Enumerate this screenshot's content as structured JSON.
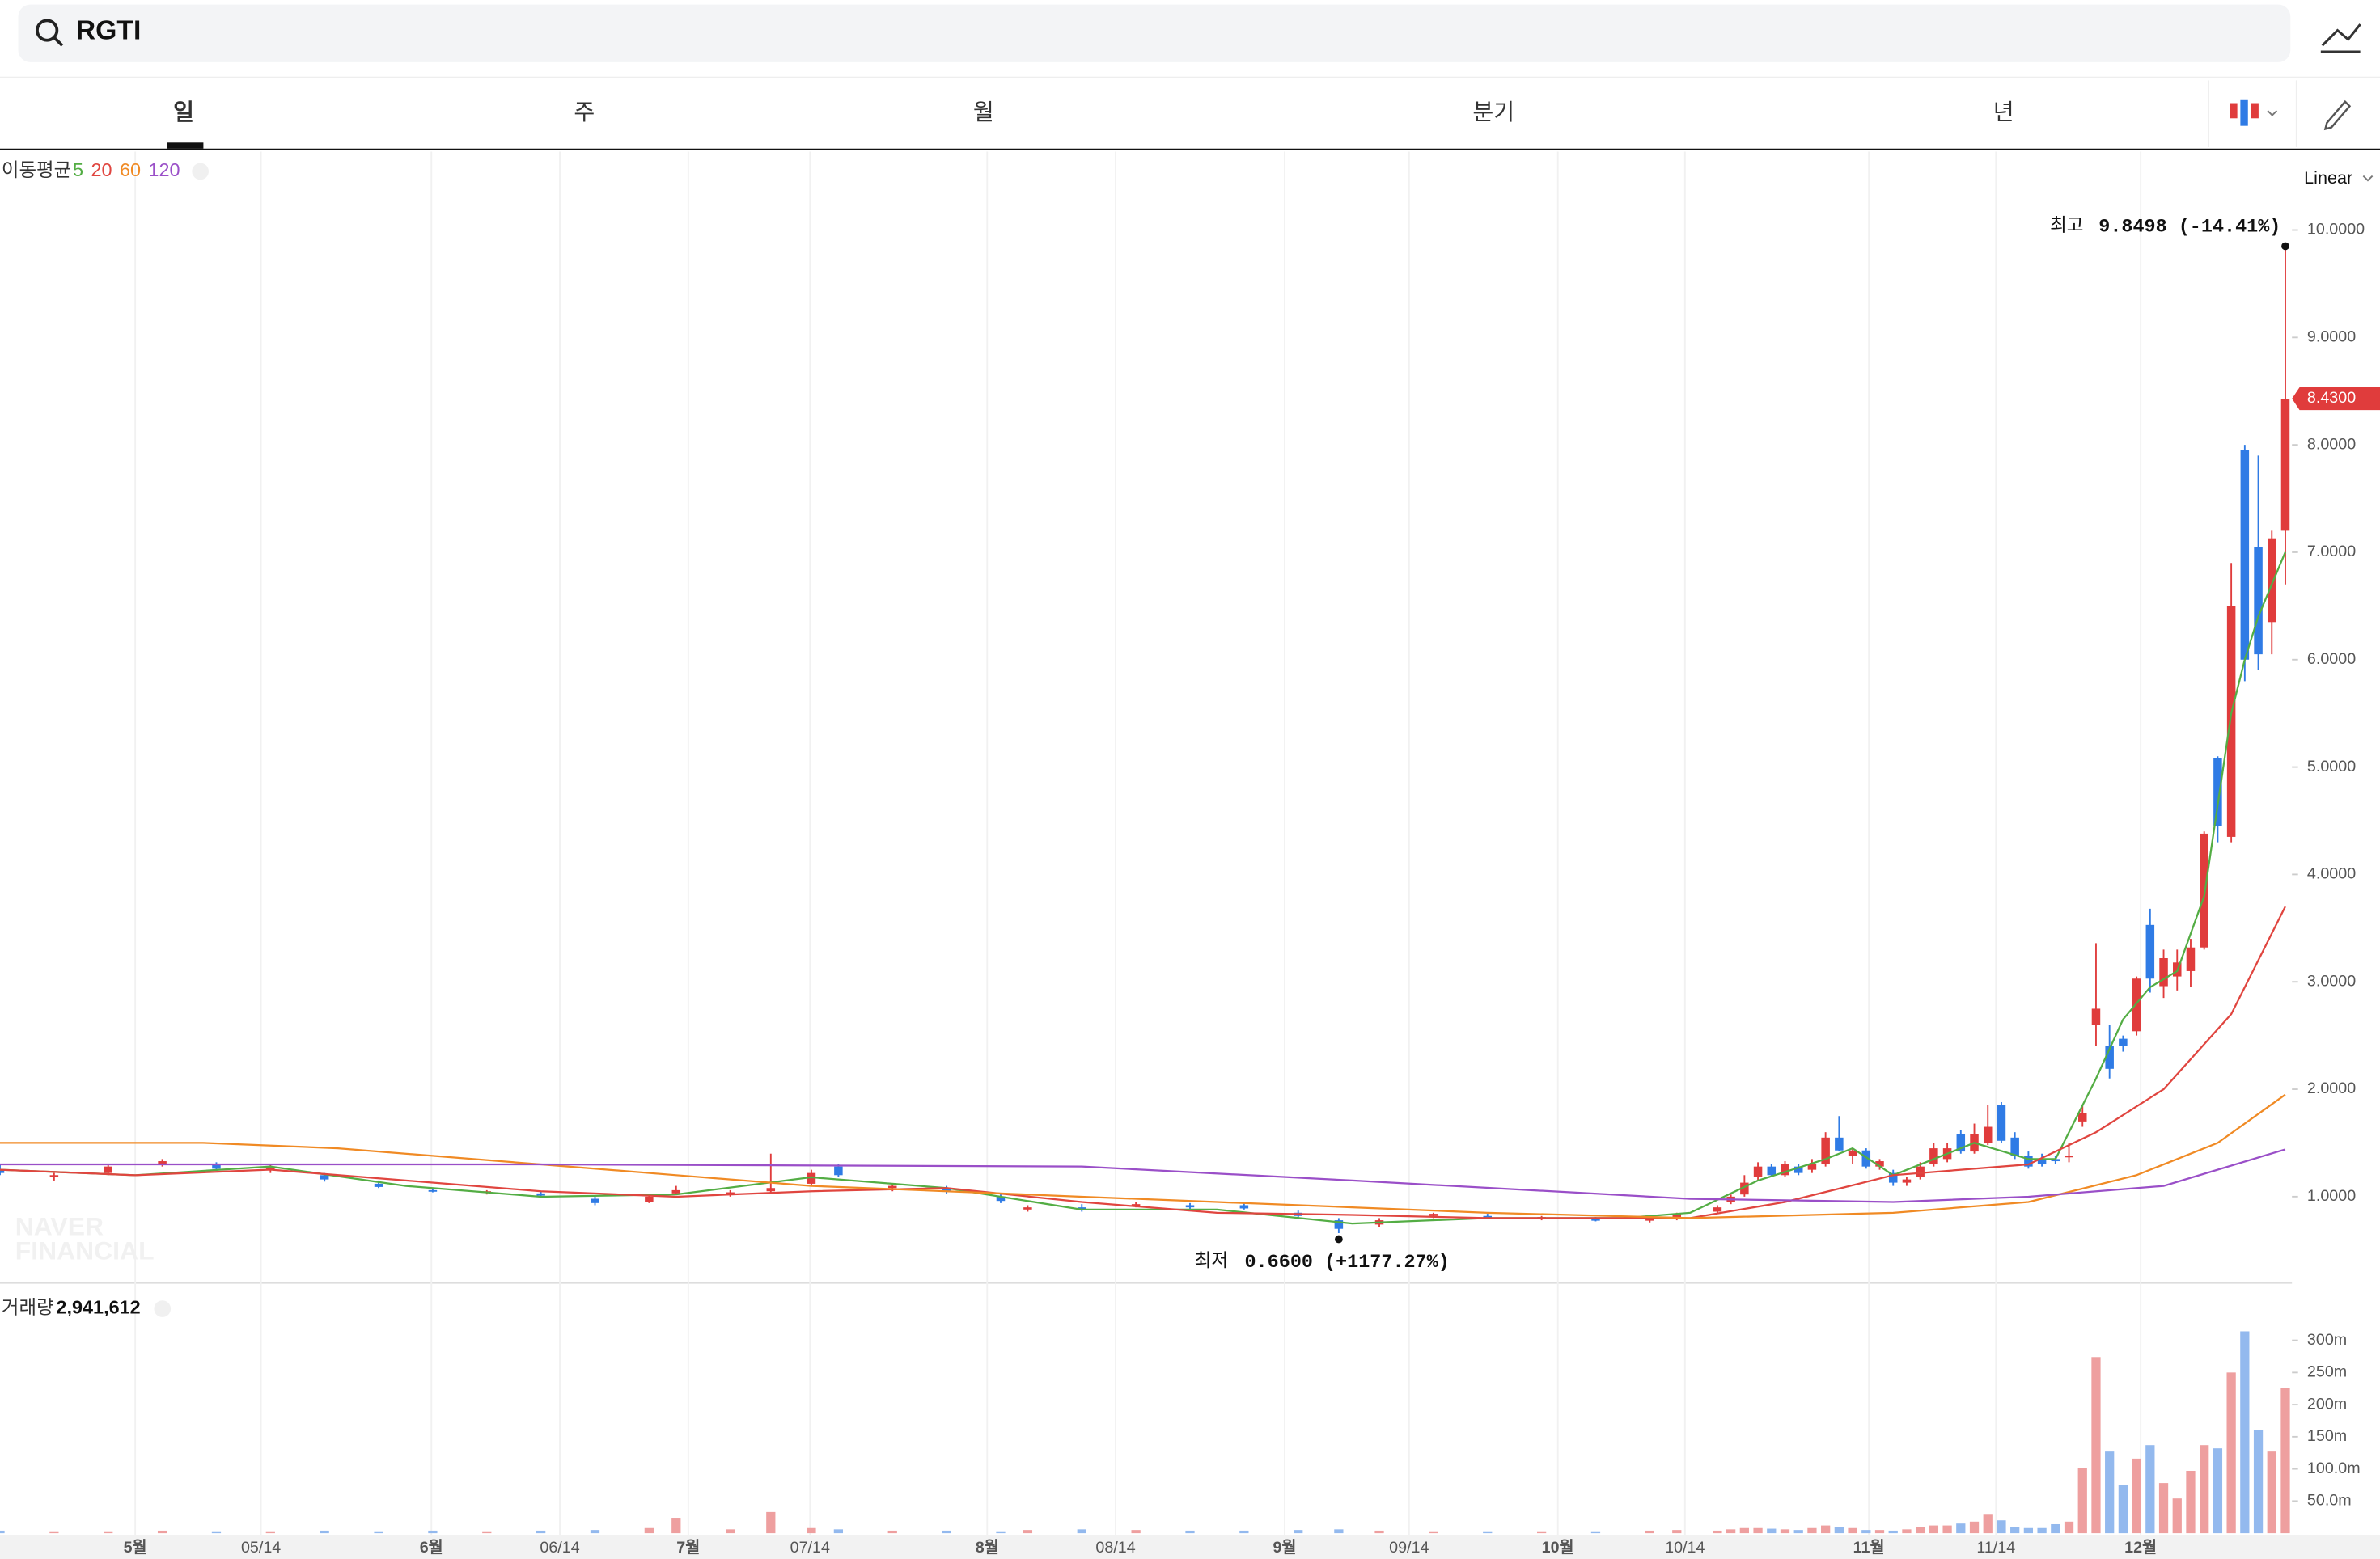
{
  "search": {
    "query": "RGTI"
  },
  "tabs": [
    "일",
    "주",
    "월",
    "분기",
    "년"
  ],
  "chart_data": [
    {
      "type": "candlestick",
      "indicator": "이동평균",
      "scale": "Linear",
      "xlim": [
        0,
        176
      ],
      "xticks": [
        {
          "value": 10,
          "label": "5월"
        },
        {
          "value": 19.3,
          "label": "05/14"
        },
        {
          "value": 31.9,
          "label": "6월"
        },
        {
          "value": 41.4,
          "label": "06/14"
        },
        {
          "value": 50.9,
          "label": "7월"
        },
        {
          "value": 59.9,
          "label": "07/14"
        },
        {
          "value": 73,
          "label": "8월"
        },
        {
          "value": 82.5,
          "label": "08/14"
        },
        {
          "value": 95,
          "label": "9월"
        },
        {
          "value": 104.2,
          "label": "09/14"
        },
        {
          "value": 115.2,
          "label": "10월"
        },
        {
          "value": 124.6,
          "label": "10/14"
        },
        {
          "value": 138.2,
          "label": "11월"
        },
        {
          "value": 147.6,
          "label": "11/14"
        },
        {
          "value": 158.3,
          "label": "12월"
        }
      ],
      "ylim": [
        0.21,
        10.73
      ],
      "yticks": [
        {
          "value": 1,
          "label": "1.0000"
        },
        {
          "value": 2,
          "label": "2.0000"
        },
        {
          "value": 3,
          "label": "3.0000"
        },
        {
          "value": 4,
          "label": "4.0000"
        },
        {
          "value": 5,
          "label": "5.0000"
        },
        {
          "value": 6,
          "label": "6.0000"
        },
        {
          "value": 7,
          "label": "7.0000"
        },
        {
          "value": 8,
          "label": "8.0000"
        },
        {
          "value": 9,
          "label": "9.0000"
        },
        {
          "value": 10,
          "label": "10.0000"
        }
      ],
      "up_color": "#e03c3c",
      "down_color": "#2f7be5",
      "x": [
        0,
        4,
        8,
        12,
        16,
        20,
        24,
        28,
        32,
        36,
        40,
        44,
        48,
        50,
        54,
        57,
        60,
        62,
        66,
        70,
        74,
        76,
        80,
        84,
        88,
        92,
        96,
        99,
        102,
        106,
        110,
        114,
        118,
        122,
        124,
        127,
        128,
        129,
        130,
        131,
        132,
        133,
        134,
        135,
        136,
        137,
        138,
        139,
        140,
        141,
        142,
        143,
        144,
        145,
        146,
        147,
        148,
        149,
        150,
        151,
        152,
        153,
        154,
        155,
        156,
        157,
        158,
        159,
        160,
        161,
        162,
        163,
        164,
        165,
        166,
        167,
        168,
        169
      ],
      "open": [
        1.25,
        1.18,
        1.22,
        1.3,
        1.3,
        1.25,
        1.2,
        1.12,
        1.06,
        1.04,
        1.03,
        0.98,
        0.95,
        1.03,
        1.02,
        1.05,
        1.12,
        1.28,
        1.08,
        1.08,
        1.0,
        0.88,
        0.9,
        0.92,
        0.92,
        0.92,
        0.85,
        0.78,
        0.74,
        0.82,
        0.82,
        0.8,
        0.79,
        0.78,
        0.8,
        0.86,
        0.95,
        1.02,
        1.18,
        1.28,
        1.2,
        1.28,
        1.25,
        1.3,
        1.55,
        1.38,
        1.43,
        1.28,
        1.22,
        1.13,
        1.18,
        1.3,
        1.35,
        1.58,
        1.42,
        1.5,
        1.85,
        1.55,
        1.38,
        1.35,
        1.35,
        1.38,
        1.7,
        2.6,
        2.4,
        2.47,
        2.54,
        3.53,
        2.96,
        3.05,
        3.1,
        3.32,
        5.08,
        4.35,
        7.95,
        7.05,
        6.35,
        7.2
      ],
      "high": [
        1.3,
        1.22,
        1.3,
        1.35,
        1.32,
        1.3,
        1.22,
        1.15,
        1.08,
        1.06,
        1.05,
        1.0,
        1.02,
        1.1,
        1.06,
        1.4,
        1.25,
        1.3,
        1.12,
        1.1,
        1.02,
        0.92,
        0.93,
        0.95,
        0.94,
        0.94,
        0.87,
        0.8,
        0.8,
        0.85,
        0.84,
        0.82,
        0.81,
        0.8,
        0.85,
        0.92,
        1.02,
        1.2,
        1.32,
        1.3,
        1.33,
        1.3,
        1.35,
        1.6,
        1.75,
        1.45,
        1.45,
        1.35,
        1.25,
        1.18,
        1.32,
        1.5,
        1.5,
        1.62,
        1.68,
        1.85,
        1.88,
        1.6,
        1.42,
        1.4,
        1.38,
        1.5,
        1.85,
        3.36,
        2.6,
        2.5,
        3.05,
        3.68,
        3.3,
        3.3,
        3.4,
        4.4,
        5.1,
        6.9,
        8.0,
        7.9,
        7.2,
        9.8498
      ],
      "low": [
        1.2,
        1.15,
        1.2,
        1.28,
        1.24,
        1.22,
        1.14,
        1.08,
        1.04,
        1.02,
        1.0,
        0.92,
        0.94,
        1.02,
        1.0,
        1.04,
        1.1,
        1.18,
        1.05,
        1.03,
        0.94,
        0.86,
        0.86,
        0.9,
        0.88,
        0.88,
        0.8,
        0.66,
        0.72,
        0.8,
        0.8,
        0.78,
        0.77,
        0.76,
        0.78,
        0.85,
        0.93,
        1.0,
        1.15,
        1.18,
        1.18,
        1.2,
        1.22,
        1.28,
        1.42,
        1.3,
        1.26,
        1.25,
        1.1,
        1.1,
        1.16,
        1.28,
        1.32,
        1.4,
        1.4,
        1.48,
        1.5,
        1.35,
        1.26,
        1.28,
        1.3,
        1.32,
        1.65,
        2.4,
        2.1,
        2.35,
        2.5,
        2.9,
        2.85,
        2.92,
        2.95,
        3.3,
        4.3,
        4.3,
        5.8,
        5.9,
        6.05,
        6.7
      ],
      "close": [
        1.22,
        1.2,
        1.28,
        1.33,
        1.26,
        1.28,
        1.16,
        1.09,
        1.05,
        1.05,
        1.01,
        0.94,
        1.0,
        1.06,
        1.04,
        1.08,
        1.22,
        1.2,
        1.1,
        1.05,
        0.96,
        0.9,
        0.88,
        0.93,
        0.9,
        0.89,
        0.82,
        0.7,
        0.78,
        0.84,
        0.81,
        0.81,
        0.78,
        0.79,
        0.84,
        0.9,
        1.0,
        1.13,
        1.28,
        1.2,
        1.3,
        1.22,
        1.3,
        1.55,
        1.43,
        1.43,
        1.28,
        1.33,
        1.13,
        1.16,
        1.28,
        1.45,
        1.45,
        1.42,
        1.58,
        1.65,
        1.52,
        1.38,
        1.28,
        1.3,
        1.33,
        1.38,
        1.78,
        2.75,
        2.19,
        2.4,
        3.03,
        3.03,
        3.22,
        3.18,
        3.32,
        4.38,
        4.45,
        6.5,
        6.0,
        6.05,
        7.13,
        8.43
      ],
      "series": [
        {
          "name": "5",
          "color": "#53ad44",
          "x": [
            0,
            10,
            20,
            30,
            40,
            50,
            60,
            70,
            80,
            90,
            100,
            110,
            120,
            125,
            130,
            135,
            137,
            140,
            143,
            146,
            150,
            152,
            155,
            157,
            159,
            161,
            163,
            165,
            166,
            167,
            169
          ],
          "values": [
            1.25,
            1.2,
            1.28,
            1.1,
            1.0,
            1.02,
            1.18,
            1.08,
            0.88,
            0.88,
            0.75,
            0.8,
            0.8,
            0.85,
            1.15,
            1.35,
            1.45,
            1.2,
            1.35,
            1.5,
            1.35,
            1.35,
            2.1,
            2.65,
            2.95,
            3.1,
            3.8,
            5.5,
            6.0,
            6.4,
            7.0
          ]
        },
        {
          "name": "20",
          "color": "#e0453f",
          "x": [
            0,
            10,
            20,
            30,
            40,
            50,
            60,
            70,
            80,
            90,
            100,
            110,
            125,
            132,
            140,
            150,
            155,
            160,
            165,
            169
          ],
          "values": [
            1.25,
            1.2,
            1.25,
            1.15,
            1.05,
            1.0,
            1.05,
            1.08,
            0.95,
            0.85,
            0.83,
            0.8,
            0.8,
            0.95,
            1.2,
            1.3,
            1.6,
            2.0,
            2.7,
            3.7
          ]
        },
        {
          "name": "60",
          "color": "#f08a24",
          "x": [
            0,
            15,
            25,
            40,
            50,
            60,
            70,
            80,
            90,
            100,
            110,
            125,
            140,
            150,
            158,
            164,
            169
          ],
          "values": [
            1.5,
            1.5,
            1.45,
            1.3,
            1.2,
            1.1,
            1.05,
            1.0,
            0.95,
            0.9,
            0.85,
            0.8,
            0.85,
            0.95,
            1.2,
            1.5,
            1.95
          ]
        },
        {
          "name": "120",
          "color": "#9a4fc8",
          "x": [
            0,
            40,
            80,
            100,
            125,
            140,
            150,
            160,
            169
          ],
          "values": [
            1.3,
            1.3,
            1.28,
            1.15,
            0.98,
            0.95,
            1.0,
            1.1,
            1.44
          ]
        }
      ],
      "last_price": {
        "value": 8.43,
        "label": "8.4300"
      },
      "high_note": {
        "label": "최고",
        "text": "9.8498 (-14.41%)"
      },
      "low_note": {
        "label": "최저",
        "text": "0.6600 (+1177.27%)"
      },
      "watermark": [
        "NAVER",
        "FINANCIAL"
      ]
    },
    {
      "type": "bar",
      "title": "거래량",
      "total": "2,941,612",
      "ylim": [
        0,
        368
      ],
      "yticks": [
        {
          "value": 50,
          "label": "50.0m"
        },
        {
          "value": 100,
          "label": "100.0m"
        },
        {
          "value": 150,
          "label": "150m"
        },
        {
          "value": 200,
          "label": "200m"
        },
        {
          "value": 250,
          "label": "250m"
        },
        {
          "value": 300,
          "label": "300m"
        }
      ],
      "up_color": "#ee9f9f",
      "down_color": "#93b9ee",
      "values": [
        4,
        3,
        3,
        4,
        3,
        3,
        4,
        3,
        4,
        3,
        4,
        5,
        8,
        24,
        6,
        33,
        8,
        6,
        4,
        4,
        3,
        5,
        6,
        5,
        4,
        4,
        5,
        6,
        4,
        3,
        3,
        3,
        3,
        4,
        5,
        4,
        6,
        8,
        8,
        7,
        6,
        5,
        8,
        12,
        10,
        8,
        5,
        5,
        4,
        6,
        10,
        12,
        12,
        15,
        18,
        30,
        20,
        10,
        8,
        8,
        14,
        18,
        101,
        274,
        127,
        75,
        116,
        137,
        78,
        54,
        97,
        137,
        132,
        250,
        314,
        160,
        127,
        226
      ]
    }
  ]
}
